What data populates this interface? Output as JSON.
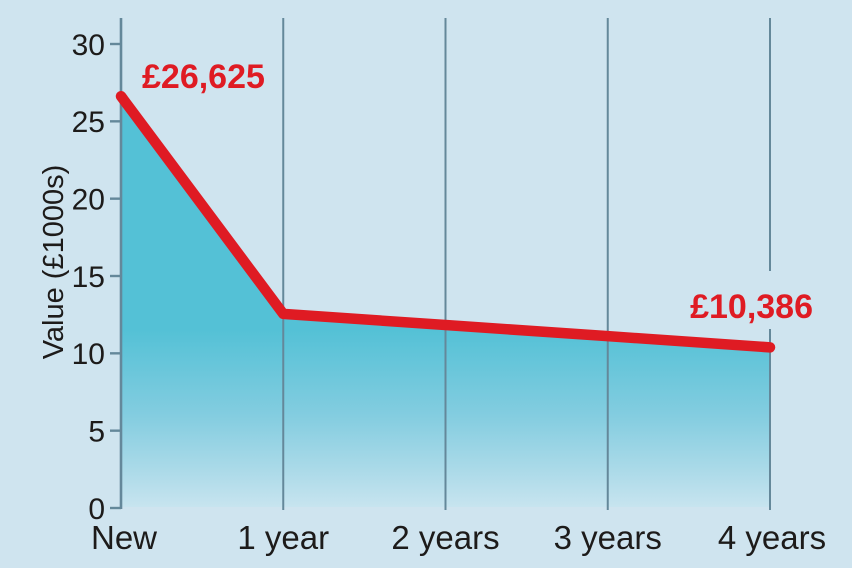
{
  "chart_data": {
    "type": "area",
    "title": "",
    "xlabel": "",
    "ylabel": "Value (£1000s)",
    "categories": [
      "New",
      "1 year",
      "2 years",
      "3 years",
      "4 years"
    ],
    "values": [
      26.625,
      12.55,
      11.83,
      11.11,
      10.386
    ],
    "annotations": [
      {
        "category_index": 0,
        "text": "£26,625"
      },
      {
        "category_index": 4,
        "text": "£10,386"
      }
    ],
    "yticks": [
      0,
      5,
      10,
      15,
      20,
      25,
      30
    ],
    "ylim": [
      0,
      31.7
    ],
    "xgrid": true,
    "ygrid": false,
    "legend": "none",
    "colors": {
      "background": "#cfe4ef",
      "line": "#df1b23",
      "annotation_text": "#df1b23",
      "area_top": "#54c1d6",
      "area_bottom": "#c7e4ef",
      "grid": "#64889a",
      "axis": "#64889a",
      "text": "#1d1b1a"
    }
  }
}
